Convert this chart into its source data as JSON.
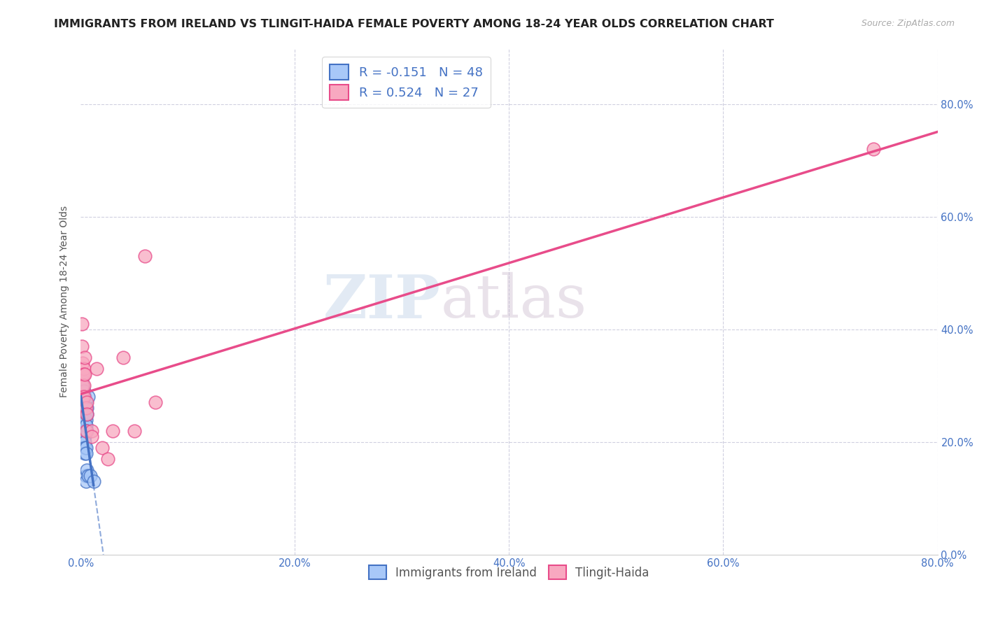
{
  "title": "IMMIGRANTS FROM IRELAND VS TLINGIT-HAIDA FEMALE POVERTY AMONG 18-24 YEAR OLDS CORRELATION CHART",
  "source": "Source: ZipAtlas.com",
  "ylabel": "Female Poverty Among 18-24 Year Olds",
  "xlabel": "",
  "watermark_zip": "ZIP",
  "watermark_atlas": "atlas",
  "xlim": [
    0.0,
    0.8
  ],
  "ylim": [
    0.0,
    0.9
  ],
  "yticks": [
    0.0,
    0.2,
    0.4,
    0.6,
    0.8
  ],
  "xticks": [
    0.0,
    0.2,
    0.4,
    0.6,
    0.8
  ],
  "xtick_labels": [
    "0.0%",
    "20.0%",
    "40.0%",
    "60.0%",
    "80.0%"
  ],
  "ytick_labels": [
    "0.0%",
    "20.0%",
    "40.0%",
    "60.0%",
    "80.0%"
  ],
  "ireland_R": -0.151,
  "ireland_N": 48,
  "tlingit_R": 0.524,
  "tlingit_N": 27,
  "ireland_color": "#a8c8f8",
  "tlingit_color": "#f8a8c0",
  "ireland_line_color": "#4472c4",
  "tlingit_line_color": "#e84c8a",
  "ireland_scatter": [
    [
      0.001,
      0.31
    ],
    [
      0.001,
      0.29
    ],
    [
      0.001,
      0.27
    ],
    [
      0.001,
      0.25
    ],
    [
      0.002,
      0.3
    ],
    [
      0.002,
      0.28
    ],
    [
      0.002,
      0.27
    ],
    [
      0.002,
      0.26
    ],
    [
      0.002,
      0.25
    ],
    [
      0.002,
      0.24
    ],
    [
      0.002,
      0.23
    ],
    [
      0.002,
      0.22
    ],
    [
      0.003,
      0.29
    ],
    [
      0.003,
      0.27
    ],
    [
      0.003,
      0.26
    ],
    [
      0.003,
      0.25
    ],
    [
      0.003,
      0.24
    ],
    [
      0.003,
      0.23
    ],
    [
      0.003,
      0.22
    ],
    [
      0.003,
      0.21
    ],
    [
      0.003,
      0.2
    ],
    [
      0.004,
      0.28
    ],
    [
      0.004,
      0.27
    ],
    [
      0.004,
      0.26
    ],
    [
      0.004,
      0.25
    ],
    [
      0.004,
      0.24
    ],
    [
      0.004,
      0.23
    ],
    [
      0.004,
      0.22
    ],
    [
      0.004,
      0.21
    ],
    [
      0.004,
      0.2
    ],
    [
      0.004,
      0.19
    ],
    [
      0.004,
      0.18
    ],
    [
      0.005,
      0.27
    ],
    [
      0.005,
      0.25
    ],
    [
      0.005,
      0.24
    ],
    [
      0.005,
      0.23
    ],
    [
      0.005,
      0.19
    ],
    [
      0.005,
      0.18
    ],
    [
      0.005,
      0.14
    ],
    [
      0.005,
      0.13
    ],
    [
      0.006,
      0.26
    ],
    [
      0.006,
      0.25
    ],
    [
      0.006,
      0.22
    ],
    [
      0.006,
      0.15
    ],
    [
      0.007,
      0.28
    ],
    [
      0.007,
      0.14
    ],
    [
      0.009,
      0.14
    ],
    [
      0.012,
      0.13
    ]
  ],
  "tlingit_scatter": [
    [
      0.001,
      0.41
    ],
    [
      0.001,
      0.37
    ],
    [
      0.002,
      0.34
    ],
    [
      0.002,
      0.32
    ],
    [
      0.002,
      0.3
    ],
    [
      0.002,
      0.28
    ],
    [
      0.003,
      0.33
    ],
    [
      0.003,
      0.32
    ],
    [
      0.003,
      0.3
    ],
    [
      0.003,
      0.28
    ],
    [
      0.004,
      0.35
    ],
    [
      0.004,
      0.32
    ],
    [
      0.005,
      0.26
    ],
    [
      0.005,
      0.22
    ],
    [
      0.006,
      0.27
    ],
    [
      0.006,
      0.25
    ],
    [
      0.01,
      0.22
    ],
    [
      0.01,
      0.21
    ],
    [
      0.015,
      0.33
    ],
    [
      0.02,
      0.19
    ],
    [
      0.025,
      0.17
    ],
    [
      0.03,
      0.22
    ],
    [
      0.04,
      0.35
    ],
    [
      0.05,
      0.22
    ],
    [
      0.06,
      0.53
    ],
    [
      0.07,
      0.27
    ],
    [
      0.74,
      0.72
    ]
  ],
  "background_color": "#ffffff",
  "grid_color": "#d0d0e0",
  "title_fontsize": 11.5,
  "axis_fontsize": 10,
  "tick_fontsize": 10.5
}
